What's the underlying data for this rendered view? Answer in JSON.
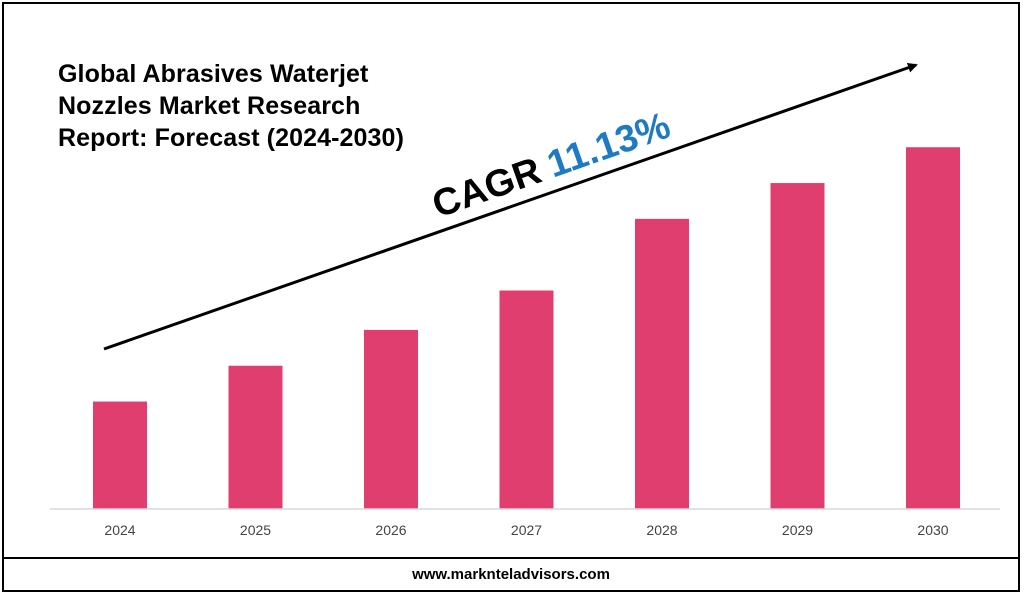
{
  "title_lines": [
    "Global Abrasives Waterjet",
    "Nozzles Market Research",
    "Report: Forecast (2024-2030)"
  ],
  "cagr": {
    "label": "CAGR",
    "value": "11.13%"
  },
  "footer": {
    "website": "www.marknteladvisors.com"
  },
  "colors": {
    "bar": "#E03E6E",
    "cagr_value": "#1F7AC4",
    "axis": "#D9D9D9",
    "text": "#000000"
  },
  "chart_data": {
    "type": "bar",
    "title": "Global Abrasives Waterjet Nozzles Market Research Report: Forecast (2024-2030)",
    "categories": [
      "2024",
      "2025",
      "2026",
      "2027",
      "2028",
      "2029",
      "2030"
    ],
    "values": [
      30,
      40,
      50,
      61,
      81,
      91,
      101
    ],
    "ylim": [
      0,
      110
    ],
    "xlabel": "",
    "ylabel": "",
    "value_note": "relative bar heights (no axis values shown)",
    "grid": false
  }
}
